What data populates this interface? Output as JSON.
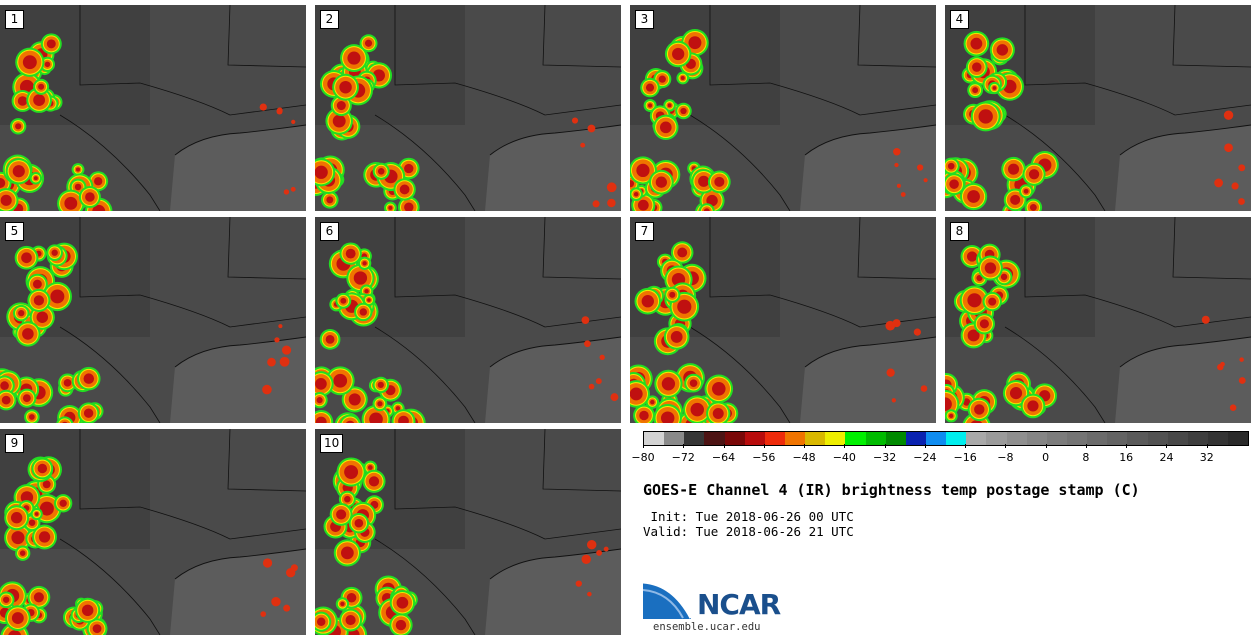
{
  "panels": [
    {
      "label": "1"
    },
    {
      "label": "2"
    },
    {
      "label": "3"
    },
    {
      "label": "4"
    },
    {
      "label": "5"
    },
    {
      "label": "6"
    },
    {
      "label": "7"
    },
    {
      "label": "8"
    },
    {
      "label": "9"
    },
    {
      "label": "10"
    }
  ],
  "colorbar": {
    "colors": [
      "#d3d3d3",
      "#8a8a8a",
      "#363636",
      "#4d1414",
      "#7a0808",
      "#b80c0c",
      "#ee2b0b",
      "#f07400",
      "#d9b800",
      "#eeee00",
      "#00f000",
      "#00bb00",
      "#008a00",
      "#0a22b0",
      "#0f8cf0",
      "#00eeee",
      "#a9a9a9",
      "#9b9b9b",
      "#8f8f8f",
      "#858585",
      "#7c7c7c",
      "#747474",
      "#6b6b6b",
      "#636363",
      "#5a5a5a",
      "#525252",
      "#484848",
      "#3e3e3e",
      "#343434",
      "#2a2a2a"
    ],
    "tick_labels": [
      "−80",
      "−72",
      "−64",
      "−56",
      "−48",
      "−40",
      "−32",
      "−24",
      "−16",
      "−8",
      "0",
      "8",
      "16",
      "24",
      "32"
    ]
  },
  "title": "GOES-E Channel 4 (IR) brightness temp postage stamp (C)",
  "init": " Init: Tue 2018-06-26 00 UTC",
  "valid": "Valid: Tue 2018-06-26 21 UTC",
  "logo": {
    "text": "NCAR",
    "url": "ensemble.ucar.edu"
  }
}
